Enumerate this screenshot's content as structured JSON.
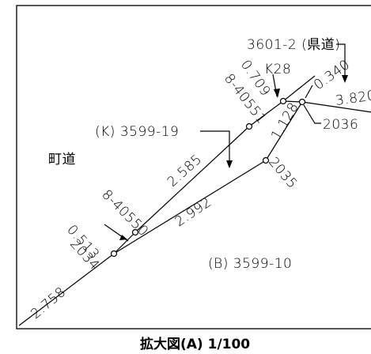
{
  "labels": {
    "road": "町道",
    "parcel_k": "(K) 3599-19",
    "parcel_b": "(B) 3599-10",
    "parcel_pref": "3601-2 (県道)",
    "k28": "K28",
    "p2034": "2034",
    "p2035": "2035",
    "p2036": "2036",
    "code_8_40550": "8-40550",
    "code_8_40551": "8-40551"
  },
  "distances": {
    "d_2758": "2.758",
    "d_0513": "0.513",
    "d_2992": "2.992",
    "d_2585": "2.585",
    "d_0709": "0.709",
    "d_1128": "1.128",
    "d_0340": "0.340",
    "d_3820": "3.820"
  },
  "caption": "拡大図(A)  1/100"
}
